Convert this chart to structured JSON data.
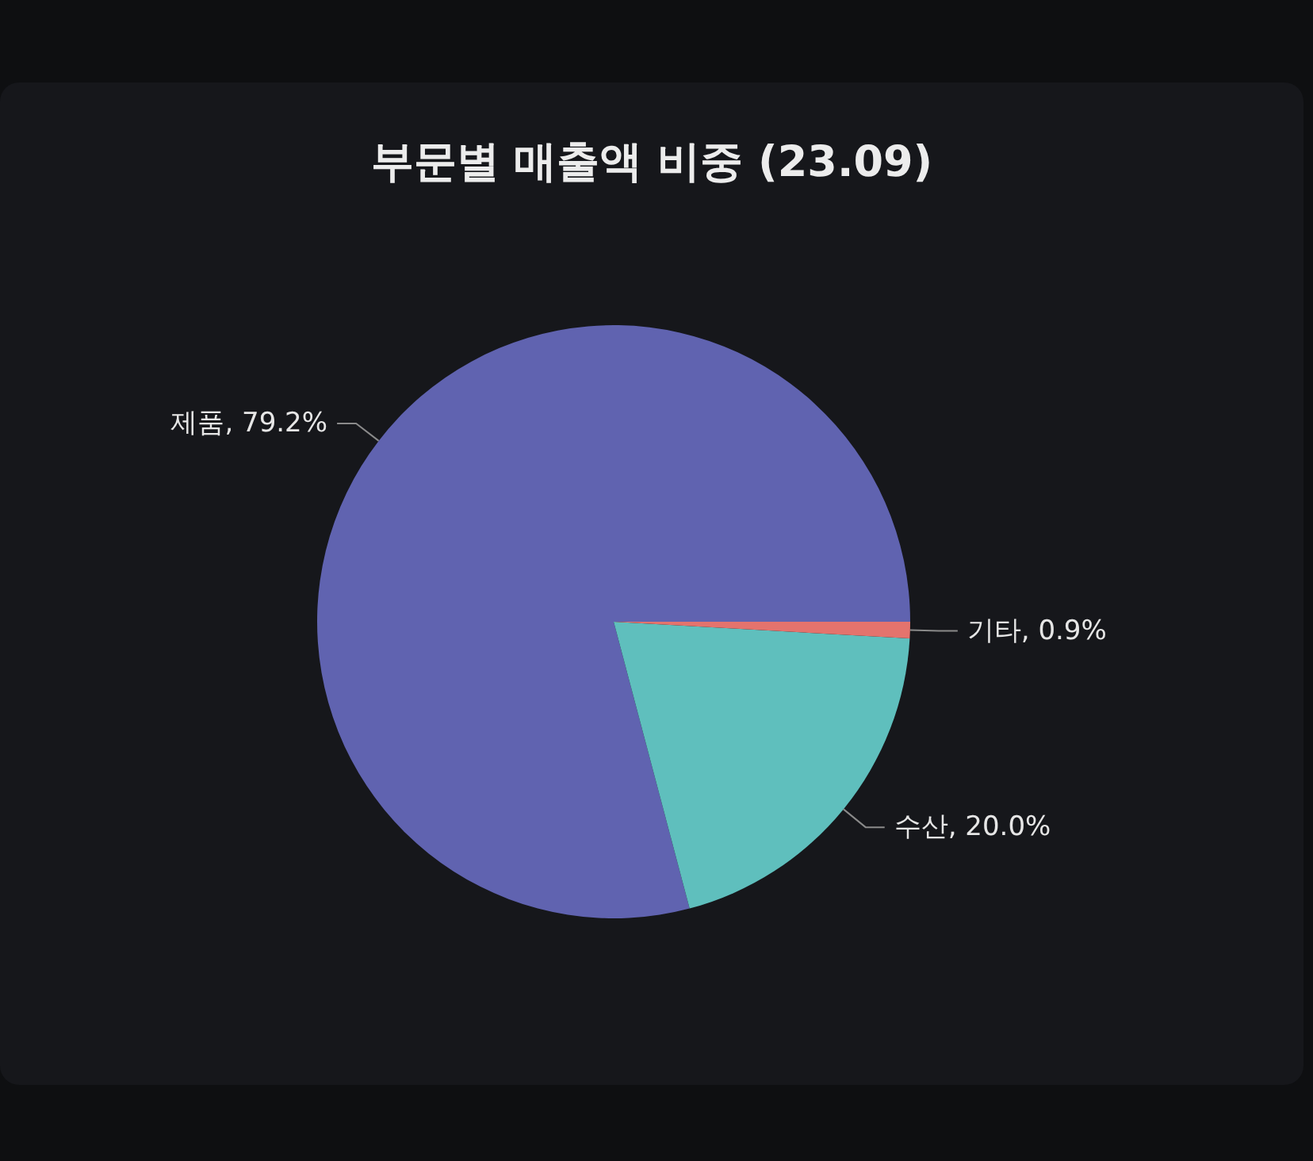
{
  "chart_data": {
    "type": "pie",
    "title": "부문별 매출액 비중 (23.09)",
    "categories": [
      "제품",
      "수산",
      "기타"
    ],
    "values": [
      79.2,
      20.0,
      0.9
    ],
    "colors": [
      "#6063b0",
      "#5fbfbd",
      "#e4736d"
    ],
    "value_labels": [
      "79.2%",
      "20.0%",
      "0.9%"
    ]
  }
}
